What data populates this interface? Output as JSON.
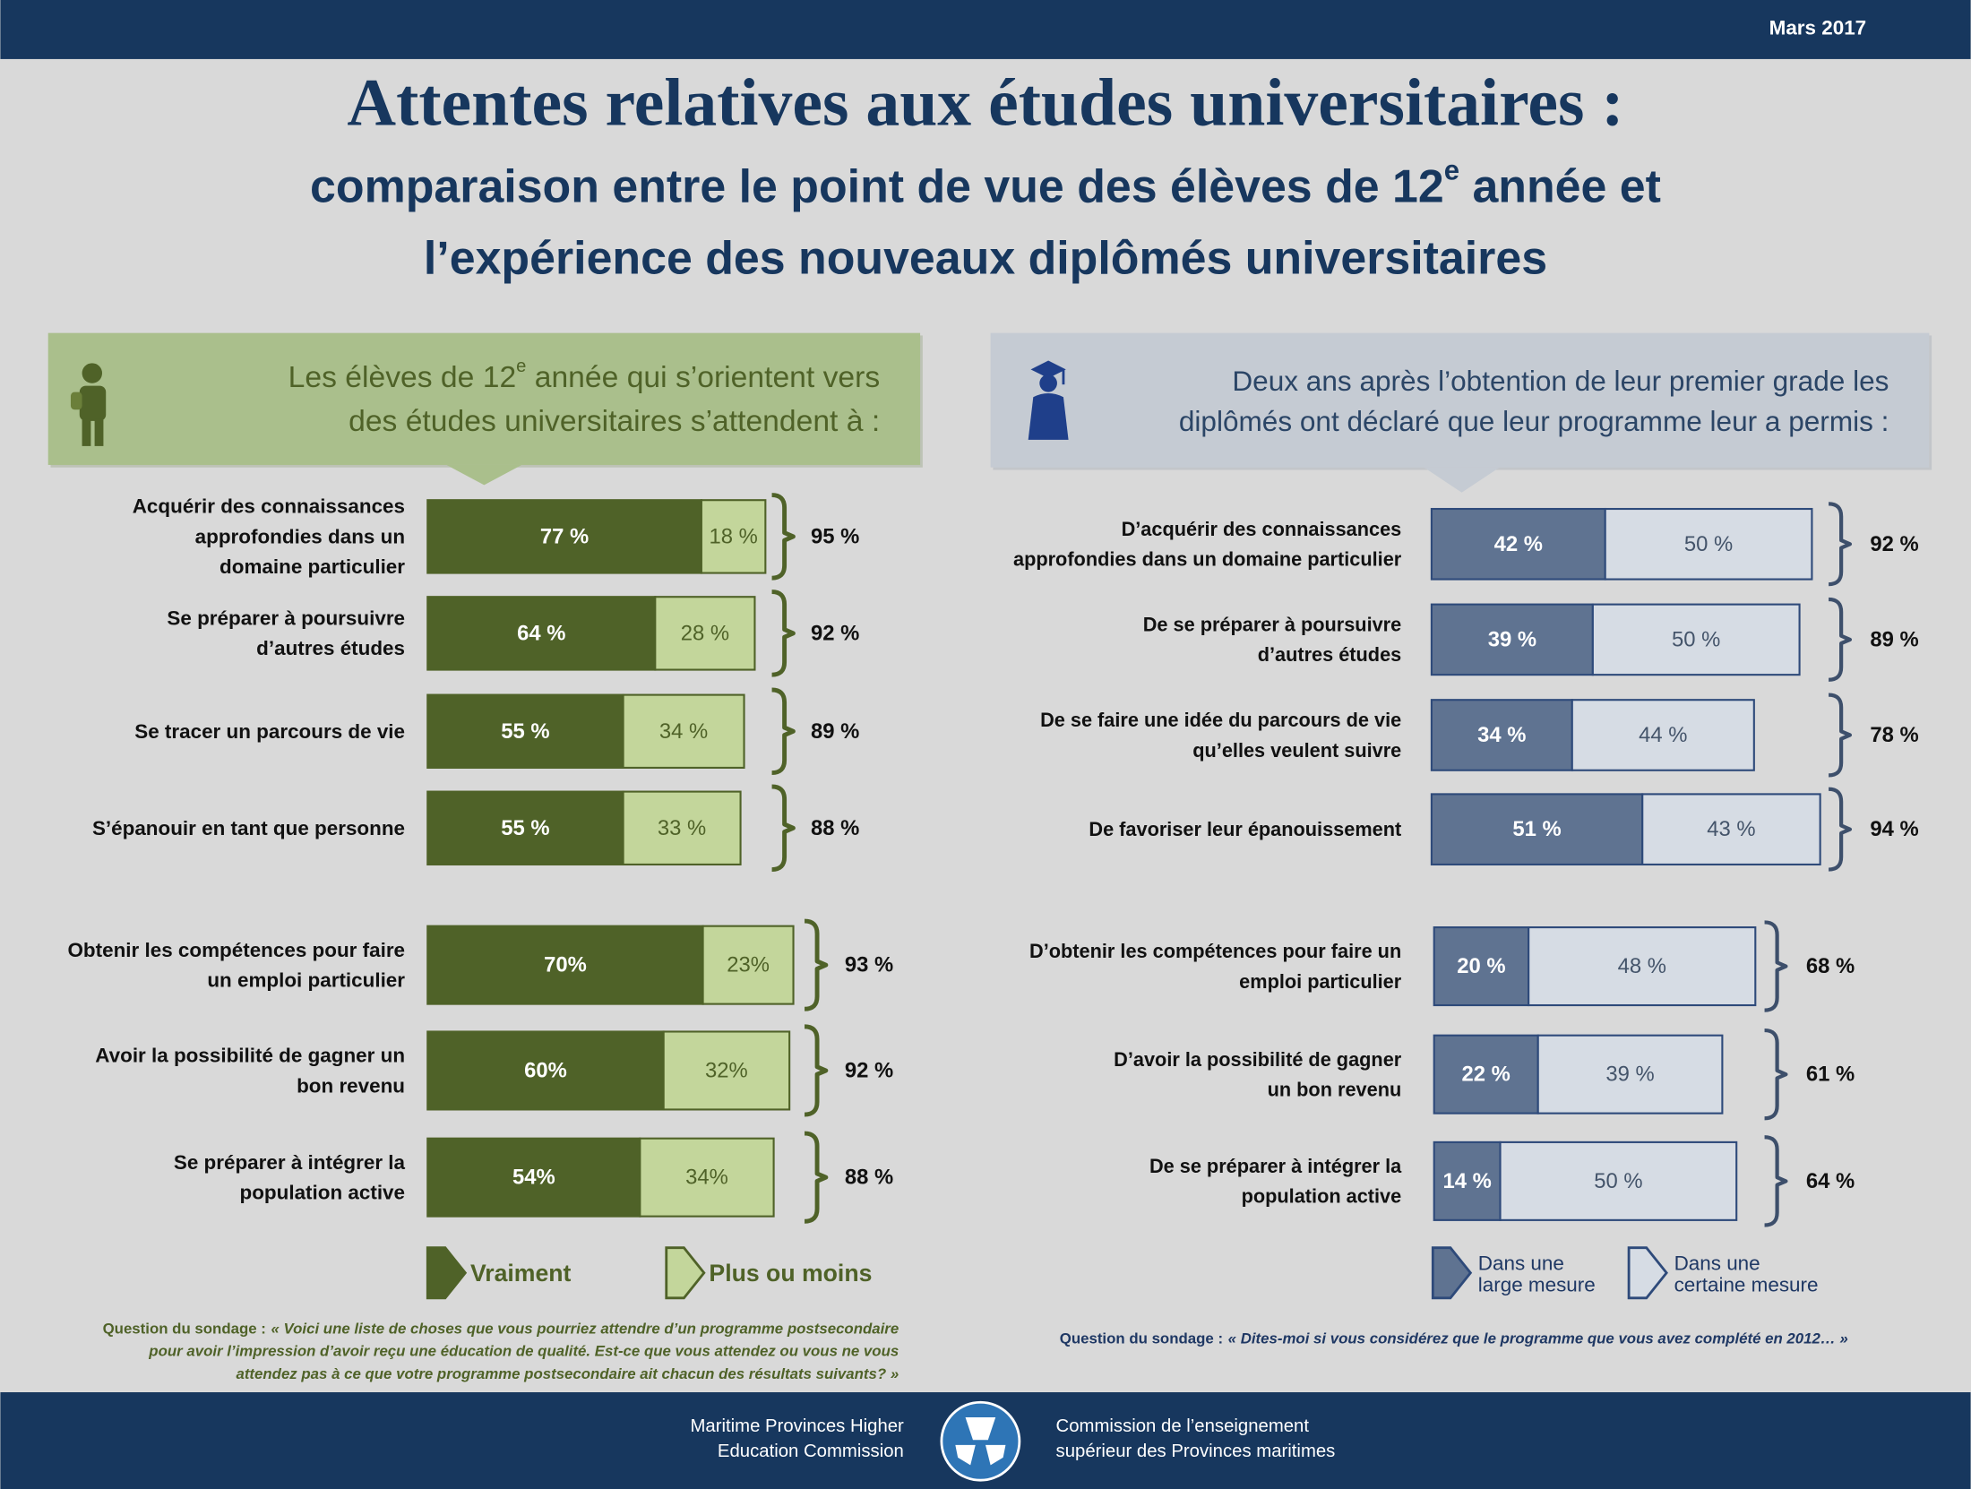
{
  "header": {
    "date": "Mars 2017"
  },
  "title": "Attentes relatives aux études universitaires :",
  "subtitle": [
    [
      "comparaison entre le point de vue des élèves de 12",
      "e",
      " année et"
    ],
    [
      "l’expérience des nouveaux diplômés universitaires"
    ]
  ],
  "panels": [
    {
      "heading": [
        [
          "Les élèves de 12",
          "e",
          " année qui s’orientent vers"
        ],
        [
          "des études universitaires s’attendent à :"
        ]
      ],
      "question": {
        "label": "Question du sondage :",
        "lines": [
          "« Voici une liste de choses que vous pourriez attendre d’un programme postsecondaire",
          "pour avoir l’impression d’avoir reçu une éducation de qualité. Est-ce que vous attendez ou vous ne vous",
          "attendez pas à ce que votre programme postsecondaire ait chacun des résultats suivants? »"
        ]
      }
    },
    {
      "heading": [
        [
          "Deux ans après l’obtention de leur premier grade les"
        ],
        [
          "diplômés ont déclaré que leur programme leur a permis :"
        ]
      ],
      "question": {
        "label": "Question du sondage :",
        "lines": [
          "« Dites-moi si vous considérez que le programme que vous avez complété en 2012… »"
        ]
      }
    }
  ],
  "chart_data": [
    {
      "type": "bar",
      "orientation": "horizontal",
      "stacked": true,
      "series": [
        {
          "name": "Vraiment",
          "color": "#4f6228"
        },
        {
          "name": "Plus ou moins",
          "color": "#c3d69b"
        }
      ],
      "groups": [
        {
          "categories": [
            [
              "Acquérir des connaissances",
              "approfondies dans un",
              "domaine particulier"
            ],
            [
              "Se préparer à poursuivre",
              "d’autres études"
            ],
            [
              "Se tracer un parcours de vie"
            ],
            [
              "S’épanouir en tant que personne"
            ]
          ],
          "series": [
            {
              "values": [
                77,
                64,
                55,
                55
              ],
              "value_labels": [
                "77 %",
                "64 %",
                "55 %",
                "55 %"
              ]
            },
            {
              "values": [
                18,
                28,
                34,
                33
              ],
              "value_labels": [
                "18 %",
                "28 %",
                "34 %",
                "33 %"
              ]
            }
          ],
          "totals": [
            95,
            92,
            89,
            88
          ],
          "total_labels": [
            "95 %",
            "92 %",
            "89 %",
            "88 %"
          ]
        },
        {
          "categories": [
            [
              "Obtenir les compétences pour faire",
              "un emploi particulier"
            ],
            [
              "Avoir la possibilité de gagner un",
              "bon revenu"
            ],
            [
              "Se préparer à intégrer la",
              "population active"
            ]
          ],
          "series": [
            {
              "values": [
                70,
                60,
                54
              ],
              "value_labels": [
                "70%",
                "60%",
                "54%"
              ]
            },
            {
              "values": [
                23,
                32,
                34
              ],
              "value_labels": [
                "23%",
                "32%",
                "34%"
              ]
            }
          ],
          "totals": [
            93,
            92,
            88
          ],
          "total_labels": [
            "93 %",
            "92 %",
            "88 %"
          ]
        }
      ]
    },
    {
      "type": "bar",
      "orientation": "horizontal",
      "stacked": true,
      "series": [
        {
          "name": "Dans une large mesure",
          "color": "#5f7391"
        },
        {
          "name": "Dans une certaine mesure",
          "color": "#d6dce4"
        }
      ],
      "groups": [
        {
          "categories": [
            [
              "D’acquérir des connaissances",
              "approfondies dans un domaine particulier"
            ],
            [
              "De se préparer à poursuivre",
              "d’autres études"
            ],
            [
              "De se faire une idée du parcours de vie",
              "qu’elles veulent suivre"
            ],
            [
              "De favoriser leur épanouissement"
            ]
          ],
          "series": [
            {
              "values": [
                42,
                39,
                34,
                51
              ],
              "value_labels": [
                "42 %",
                "39 %",
                "34 %",
                "51 %"
              ]
            },
            {
              "values": [
                50,
                50,
                44,
                43
              ],
              "value_labels": [
                "50 %",
                "50 %",
                "44 %",
                "43 %"
              ]
            }
          ],
          "totals": [
            92,
            89,
            78,
            94
          ],
          "total_labels": [
            "92 %",
            "89 %",
            "78 %",
            "94 %"
          ]
        },
        {
          "categories": [
            [
              "D’obtenir les compétences pour faire un",
              "emploi particulier"
            ],
            [
              "D’avoir la possibilité de gagner",
              "un bon revenu"
            ],
            [
              "De se préparer à intégrer la",
              "population active"
            ]
          ],
          "series": [
            {
              "values": [
                20,
                22,
                14
              ],
              "value_labels": [
                "20 %",
                "22 %",
                "14 %"
              ]
            },
            {
              "values": [
                48,
                39,
                50
              ],
              "value_labels": [
                "48 %",
                "39 %",
                "50 %"
              ]
            }
          ],
          "totals": [
            68,
            61,
            64
          ],
          "total_labels": [
            "68 %",
            "61 %",
            "64 %"
          ]
        }
      ]
    }
  ],
  "footer": {
    "left": [
      "Maritime Provinces Higher",
      "Education Commission"
    ],
    "right": [
      "Commission de l’enseignement",
      "supérieur des Provinces maritimes"
    ]
  }
}
